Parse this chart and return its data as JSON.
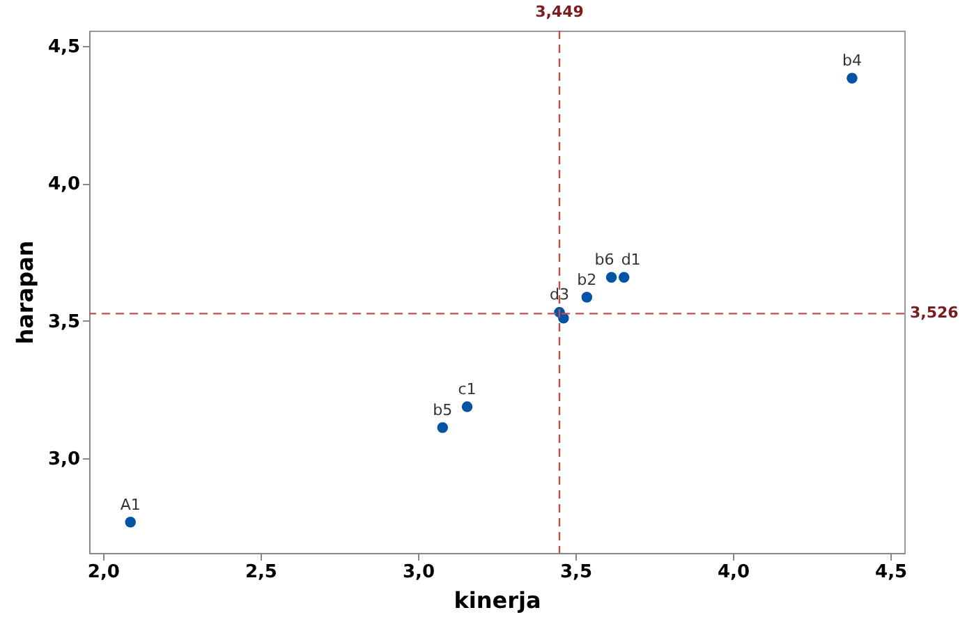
{
  "chart_data": {
    "type": "scatter",
    "xlabel": "kinerja",
    "ylabel": "harapan",
    "x": [
      2.087,
      3.078,
      3.156,
      3.449,
      3.462,
      3.536,
      3.614,
      3.654,
      4.378
    ],
    "series": [
      {
        "color": "#0054a6",
        "values": [
          2.767,
          3.111,
          3.187,
          3.531,
          3.51,
          3.586,
          3.658,
          3.658,
          4.383
        ]
      }
    ],
    "marker": "circle",
    "grid": false,
    "xlim": [
      1.956,
      4.544
    ],
    "ylim": [
      2.655,
      4.556
    ],
    "xticks": [
      {
        "value": 2,
        "label": "2,0"
      },
      {
        "value": 2.5,
        "label": "2,5"
      },
      {
        "value": 3,
        "label": "3,0"
      },
      {
        "value": 3.5,
        "label": "3,5"
      },
      {
        "value": 4,
        "label": "4,0"
      },
      {
        "value": 4.5,
        "label": "4,5"
      }
    ],
    "yticks": [
      {
        "value": 3,
        "label": "3,0"
      },
      {
        "value": 3.5,
        "label": "3,5"
      },
      {
        "value": 4,
        "label": "4,0"
      },
      {
        "value": 4.5,
        "label": "4,5"
      }
    ],
    "ref_lines": [
      {
        "axis": "x",
        "value": 3.449,
        "label": "3,449",
        "color": "#c0504d",
        "line_style": "dashed"
      },
      {
        "axis": "y",
        "value": 3.526,
        "label": "3,526",
        "color": "#c0504d",
        "line_style": "dashed"
      }
    ],
    "annotations": [
      {
        "text": "A1",
        "x": 2.087,
        "y": 2.767
      },
      {
        "text": "b5",
        "x": 3.078,
        "y": 3.111
      },
      {
        "text": "c1",
        "x": 3.156,
        "y": 3.187
      },
      {
        "text": "d3",
        "x": 3.449,
        "y": 3.531
      },
      {
        "text": "b2",
        "x": 3.536,
        "y": 3.586
      },
      {
        "text": "b6",
        "x": 3.614,
        "y": 3.658
      },
      {
        "text": "d1",
        "x": 3.654,
        "y": 3.658
      },
      {
        "text": "b4",
        "x": 4.378,
        "y": 4.383
      }
    ]
  }
}
